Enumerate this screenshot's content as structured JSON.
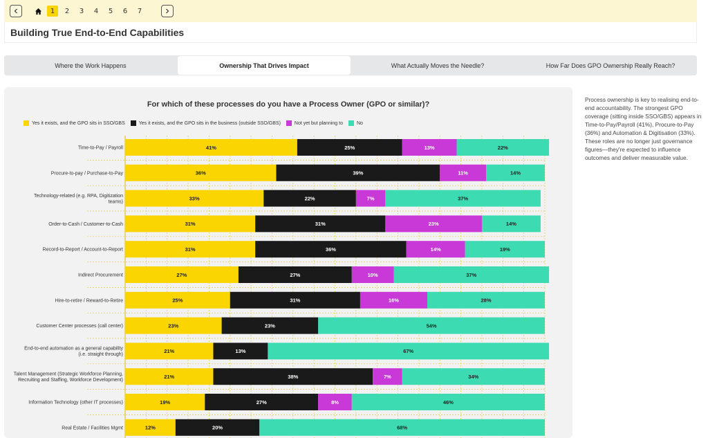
{
  "nav": {
    "prev_icon": "chevron-left-icon",
    "home_icon": "home-icon",
    "next_icon": "chevron-right-icon",
    "pages": [
      "1",
      "2",
      "3",
      "4",
      "5",
      "6",
      "7"
    ],
    "active_page": "1"
  },
  "page_title": "Building True End-to-End Capabilities",
  "tabs": [
    {
      "label": "Where the Work Happens",
      "active": false
    },
    {
      "label": "Ownership That Drives Impact",
      "active": true
    },
    {
      "label": "What Actually Moves the Needle?",
      "active": false
    },
    {
      "label": "How Far Does GPO Ownership Really Reach?",
      "active": false
    }
  ],
  "side_text": "Process ownership is key to realising end-to-end accountability. The strongest GPO coverage (sitting inside SSO/GBS) appears in Time-to-Pay/Payroll (41%), Procure-to-Pay (36%) and Automation & Digitisation (33%). These roles are no longer just governance figures—they're expected to influence outcomes and deliver measurable value.",
  "chart_data": {
    "type": "bar",
    "orientation": "horizontal",
    "stacked": true,
    "title": "For which of these processes do you have a Process Owner (GPO or similar)?",
    "legend_position": "top-left",
    "grid": true,
    "xlim": [
      0,
      100
    ],
    "categories": [
      "Time-to-Pay / Payroll",
      "Procure-to-pay / Purchase-to-Pay",
      "Technology-related (e.g. RPA, Digitization teams)",
      "Order-to-Cash / Customer-to-Cash",
      "Record-to-Report / Account-to-Report",
      "Indirect Procurement",
      "Hire-to-retire / Reward-to-Retire",
      "Customer Center processes (call center)",
      "End-to-end automation as a general capability (i.e. straight through)",
      "Talent Management (Strategic Workforce Planning, Recruiting and Staffing, Workforce Development)",
      "Information Technology (other IT processes)",
      "Real Estate / Facilities Mgmt"
    ],
    "series": [
      {
        "name": "Yes it exists, and the GPO sits in SSO/GBS",
        "color": "#fad500",
        "label_color": "#222222",
        "values": [
          41,
          36,
          33,
          31,
          31,
          27,
          25,
          23,
          21,
          21,
          19,
          12
        ]
      },
      {
        "name": "Yes it exists, and the GPO sits in the business (outside SSO/GBS)",
        "color": "#1a1a1a",
        "label_color": "#ffffff",
        "values": [
          25,
          39,
          22,
          31,
          36,
          27,
          31,
          23,
          13,
          38,
          27,
          20
        ]
      },
      {
        "name": "Not yet but planning to",
        "color": "#c839d8",
        "label_color": "#ffffff",
        "values": [
          13,
          11,
          7,
          23,
          14,
          10,
          16,
          0,
          0,
          7,
          8,
          0
        ]
      },
      {
        "name": "No",
        "color": "#3ddbb1",
        "label_color": "#222222",
        "values": [
          22,
          14,
          37,
          14,
          19,
          37,
          28,
          54,
          67,
          34,
          46,
          68
        ]
      }
    ]
  }
}
